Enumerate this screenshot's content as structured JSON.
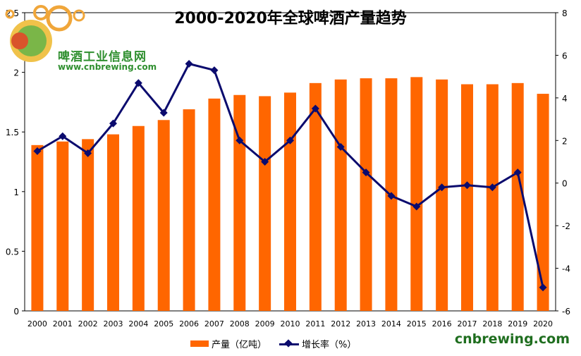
{
  "logo": {
    "name": "啤酒工业信息网",
    "url": "www.cnbrewing.com"
  },
  "watermark": "cnbrewing.com",
  "colors": {
    "bar": "#ff6600",
    "line": "#0b0b6e",
    "logo_green": "#2f8f2f"
  },
  "chart_data": {
    "type": "bar",
    "title": "2000-2020年全球啤酒产量趋势",
    "categories": [
      "2000",
      "2001",
      "2002",
      "2003",
      "2004",
      "2005",
      "2006",
      "2007",
      "2008",
      "2009",
      "2010",
      "2011",
      "2012",
      "2013",
      "2014",
      "2015",
      "2016",
      "2017",
      "2018",
      "2019",
      "2020"
    ],
    "series": [
      {
        "name": "产量（亿吨）",
        "kind": "bar",
        "axis": "left",
        "values": [
          1.39,
          1.42,
          1.44,
          1.48,
          1.55,
          1.6,
          1.69,
          1.78,
          1.81,
          1.8,
          1.83,
          1.91,
          1.94,
          1.95,
          1.95,
          1.96,
          1.94,
          1.9,
          1.9,
          1.91,
          1.82
        ]
      },
      {
        "name": "增长率（%）",
        "kind": "line",
        "axis": "right",
        "values": [
          1.5,
          2.2,
          1.4,
          2.8,
          4.7,
          3.3,
          5.6,
          5.3,
          2.0,
          1.0,
          2.0,
          3.5,
          1.7,
          0.5,
          -0.6,
          -1.1,
          -0.2,
          -0.1,
          -0.2,
          0.5,
          -4.9
        ]
      }
    ],
    "y_left": {
      "min": 0,
      "max": 2.5,
      "ticks": [
        "0",
        "0.5",
        "1",
        "1.5",
        "2",
        "2.5"
      ]
    },
    "y_right": {
      "min": -6,
      "max": 8,
      "ticks": [
        "-6",
        "-4",
        "-2",
        "0",
        "2",
        "4",
        "6",
        "8"
      ]
    },
    "legend": [
      "产量（亿吨）",
      "增长率（%）"
    ],
    "legend_position": "bottom"
  }
}
